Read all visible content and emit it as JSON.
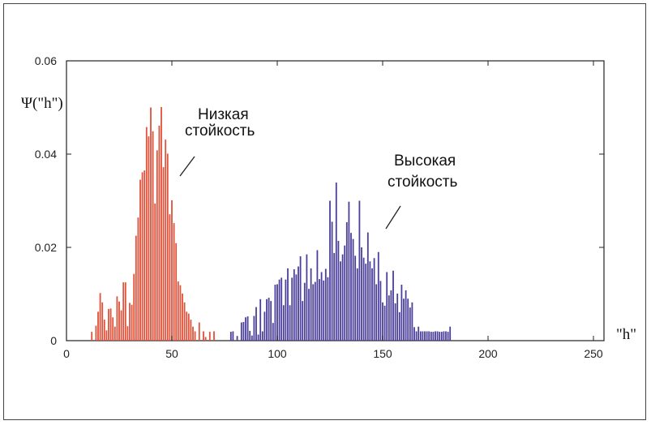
{
  "chart_data": {
    "type": "bar",
    "ylabel": "Ψ(\"h\")",
    "xlabel": "\"h\"",
    "xlim": [
      0,
      255
    ],
    "ylim": [
      0,
      0.06
    ],
    "xticks": [
      0,
      50,
      100,
      150,
      200,
      250
    ],
    "yticks": [
      {
        "v": 0,
        "label": "0"
      },
      {
        "v": 0.02,
        "label": "0.02"
      },
      {
        "v": 0.04,
        "label": "0.04"
      },
      {
        "v": 0.06,
        "label": "0.06"
      }
    ],
    "grid": false,
    "annotations": [
      {
        "lines": [
          "Низкая",
          "стойкость"
        ]
      },
      {
        "lines": [
          "Высокая",
          "стойкость"
        ]
      }
    ],
    "series": [
      {
        "color": "#e0523a",
        "x": [
          12,
          14,
          15,
          16,
          17,
          18,
          19,
          20,
          21,
          22,
          23,
          24,
          25,
          26,
          27,
          28,
          29,
          30,
          31,
          32,
          33,
          34,
          35,
          36,
          37,
          38,
          39,
          40,
          41,
          42,
          43,
          44,
          45,
          46,
          47,
          48,
          49,
          50,
          51,
          52,
          53,
          54,
          55,
          56,
          57,
          58,
          59,
          60,
          61,
          63,
          65,
          66,
          68,
          70
        ],
        "values": [
          0.0019,
          0.0032,
          0.0062,
          0.0102,
          0.0082,
          0.0045,
          0.0022,
          0.0068,
          0.0069,
          0.005,
          0.003,
          0.0095,
          0.0084,
          0.0065,
          0.0125,
          0.0125,
          0.0031,
          0.0081,
          0.0077,
          0.0143,
          0.0225,
          0.0264,
          0.0345,
          0.0361,
          0.0365,
          0.0458,
          0.0438,
          0.05,
          0.0449,
          0.0294,
          0.0408,
          0.0461,
          0.0501,
          0.0372,
          0.0431,
          0.0401,
          0.0271,
          0.0301,
          0.0252,
          0.0209,
          0.0127,
          0.0119,
          0.0101,
          0.0082,
          0.0062,
          0.0058,
          0.0045,
          0.003,
          0.002,
          0.0039,
          0.002,
          0.0008,
          0.0019,
          0.002
        ]
      },
      {
        "color": "#4b3f9a",
        "x": [
          78,
          79,
          81,
          83,
          84,
          85,
          86,
          87,
          88,
          89,
          90,
          91,
          92,
          93,
          94,
          95,
          96,
          97,
          98,
          99,
          100,
          101,
          102,
          103,
          104,
          105,
          106,
          107,
          108,
          109,
          110,
          111,
          112,
          113,
          114,
          115,
          116,
          117,
          118,
          119,
          120,
          121,
          122,
          123,
          124,
          125,
          126,
          127,
          128,
          129,
          130,
          131,
          132,
          133,
          134,
          135,
          136,
          137,
          138,
          139,
          140,
          141,
          142,
          143,
          144,
          145,
          146,
          147,
          148,
          149,
          150,
          151,
          152,
          153,
          154,
          155,
          156,
          157,
          158,
          159,
          160,
          161,
          162,
          163,
          164,
          165,
          166,
          167,
          168,
          169,
          170,
          171,
          172,
          173,
          174,
          175,
          176,
          177,
          178,
          179,
          180,
          181,
          182
        ],
        "values": [
          0.0019,
          0.002,
          0.001,
          0.0039,
          0.004,
          0.005,
          0.0052,
          0.0021,
          0.0011,
          0.0053,
          0.0072,
          0.0013,
          0.0089,
          0.002,
          0.0062,
          0.0089,
          0.0092,
          0.0085,
          0.0038,
          0.012,
          0.0121,
          0.0131,
          0.0135,
          0.0076,
          0.0131,
          0.0155,
          0.0076,
          0.0135,
          0.0153,
          0.0142,
          0.0159,
          0.0181,
          0.0085,
          0.0124,
          0.0185,
          0.0111,
          0.0155,
          0.0121,
          0.0126,
          0.0194,
          0.0132,
          0.0147,
          0.0129,
          0.0154,
          0.0136,
          0.03,
          0.0255,
          0.0188,
          0.0339,
          0.0214,
          0.017,
          0.0185,
          0.0204,
          0.0254,
          0.0298,
          0.0231,
          0.0218,
          0.0182,
          0.0155,
          0.03,
          0.02,
          0.0178,
          0.0165,
          0.0232,
          0.017,
          0.0155,
          0.0177,
          0.0121,
          0.019,
          0.0128,
          0.0082,
          0.0075,
          0.0147,
          0.0097,
          0.0108,
          0.015,
          0.008,
          0.0101,
          0.0061,
          0.012,
          0.009,
          0.0108,
          0.009,
          0.0071,
          0.0082,
          0.0029,
          0.002,
          0.003,
          0.002,
          0.002,
          0.002,
          0.002,
          0.002,
          0.0019,
          0.0019,
          0.002,
          0.002,
          0.0019,
          0.0019,
          0.002,
          0.002,
          0.0019,
          0.003
        ]
      }
    ]
  }
}
